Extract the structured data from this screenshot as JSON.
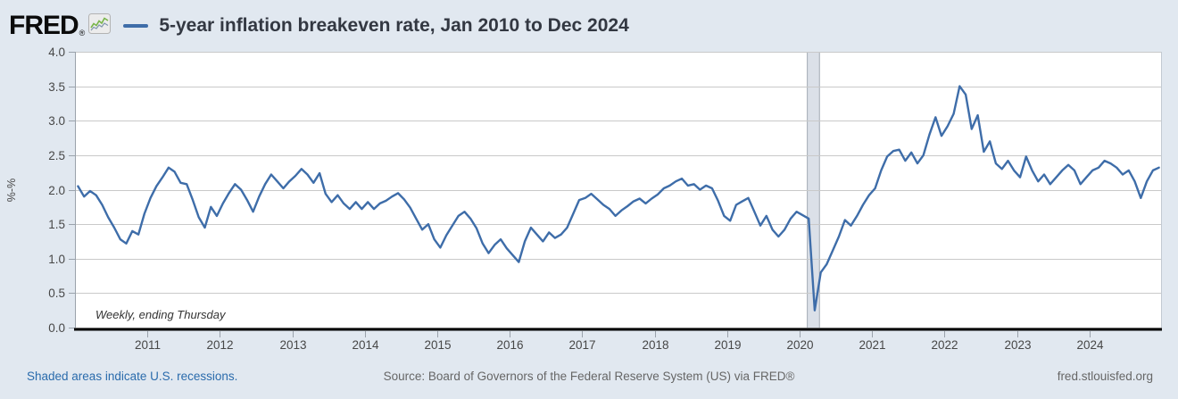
{
  "header": {
    "logo_text": "FRED",
    "registered_mark": "®"
  },
  "footer": {
    "recession_note": "Shaded areas indicate U.S. recessions.",
    "source": "Source: Board of Governors of the Federal Reserve System (US) via FRED®",
    "site": "fred.stlouisfed.org"
  },
  "colors": {
    "page_background": "#e1e8f0",
    "plot_background": "#ffffff",
    "series_line": "#3e6da9",
    "gridline": "#c9c9c9",
    "axis_line": "#000000",
    "tick_mark": "#9aa2ab",
    "plot_border_left": "#9aa2ab",
    "plot_border_right": "#c3cad2",
    "recession_band_fill": "#dbe0e8",
    "recession_band_edge": "#a6adb5",
    "tick_label": "#474747",
    "link_blue": "#2a6bac",
    "footer_gray": "#666666"
  },
  "chart_data": {
    "type": "line",
    "title": "5-year inflation breakeven rate, Jan 2010 to Dec 2024",
    "series_name": "5-year inflation breakeven rate",
    "ylabel": "%-%",
    "annotation": "Weekly, ending Thursday",
    "x_range_label": {
      "start": "Jan 2010",
      "end": "Dec 2024"
    },
    "x_axis_range": [
      2010,
      2025
    ],
    "y_axis_range": [
      0,
      4
    ],
    "grid": true,
    "legend_position": "top-left-of-title",
    "x_tick_labels": [
      "2011",
      "2012",
      "2013",
      "2014",
      "2015",
      "2016",
      "2017",
      "2018",
      "2019",
      "2020",
      "2021",
      "2022",
      "2023",
      "2024"
    ],
    "y_tick_labels": [
      "0.0",
      "0.5",
      "1.0",
      "1.5",
      "2.0",
      "2.5",
      "3.0",
      "3.5",
      "4.0"
    ],
    "line_color": "#3e6da9",
    "recessions": [
      {
        "start": 2020.1,
        "end": 2020.28
      }
    ],
    "x_start_year": 2010,
    "x_step_months": 1,
    "values": [
      2.05,
      1.9,
      1.98,
      1.92,
      1.78,
      1.6,
      1.45,
      1.28,
      1.22,
      1.4,
      1.35,
      1.65,
      1.88,
      2.05,
      2.18,
      2.32,
      2.26,
      2.1,
      2.08,
      1.85,
      1.6,
      1.45,
      1.75,
      1.62,
      1.8,
      1.95,
      2.08,
      2.0,
      1.85,
      1.68,
      1.9,
      2.08,
      2.22,
      2.12,
      2.02,
      2.12,
      2.2,
      2.3,
      2.22,
      2.1,
      2.24,
      1.94,
      1.82,
      1.92,
      1.8,
      1.72,
      1.82,
      1.72,
      1.82,
      1.72,
      1.8,
      1.84,
      1.9,
      1.95,
      1.86,
      1.74,
      1.58,
      1.42,
      1.5,
      1.28,
      1.16,
      1.34,
      1.48,
      1.62,
      1.68,
      1.58,
      1.44,
      1.22,
      1.08,
      1.2,
      1.28,
      1.15,
      1.05,
      0.95,
      1.25,
      1.45,
      1.35,
      1.25,
      1.38,
      1.3,
      1.35,
      1.45,
      1.65,
      1.85,
      1.88,
      1.94,
      1.86,
      1.78,
      1.72,
      1.62,
      1.7,
      1.76,
      1.83,
      1.87,
      1.8,
      1.87,
      1.93,
      2.02,
      2.06,
      2.12,
      2.16,
      2.06,
      2.08,
      2.0,
      2.06,
      2.02,
      1.84,
      1.62,
      1.55,
      1.78,
      1.83,
      1.88,
      1.68,
      1.48,
      1.62,
      1.42,
      1.32,
      1.42,
      1.58,
      1.68,
      1.63,
      1.58,
      0.25,
      0.8,
      0.92,
      1.12,
      1.32,
      1.56,
      1.48,
      1.62,
      1.78,
      1.92,
      2.02,
      2.28,
      2.48,
      2.56,
      2.58,
      2.42,
      2.54,
      2.38,
      2.5,
      2.8,
      3.05,
      2.78,
      2.92,
      3.1,
      3.5,
      3.38,
      2.88,
      3.08,
      2.55,
      2.7,
      2.38,
      2.3,
      2.42,
      2.28,
      2.18,
      2.48,
      2.28,
      2.12,
      2.22,
      2.08,
      2.18,
      2.28,
      2.36,
      2.28,
      2.08,
      2.18,
      2.28,
      2.32,
      2.42,
      2.38,
      2.32,
      2.22,
      2.28,
      2.12,
      1.88,
      2.12,
      2.28,
      2.32
    ]
  }
}
